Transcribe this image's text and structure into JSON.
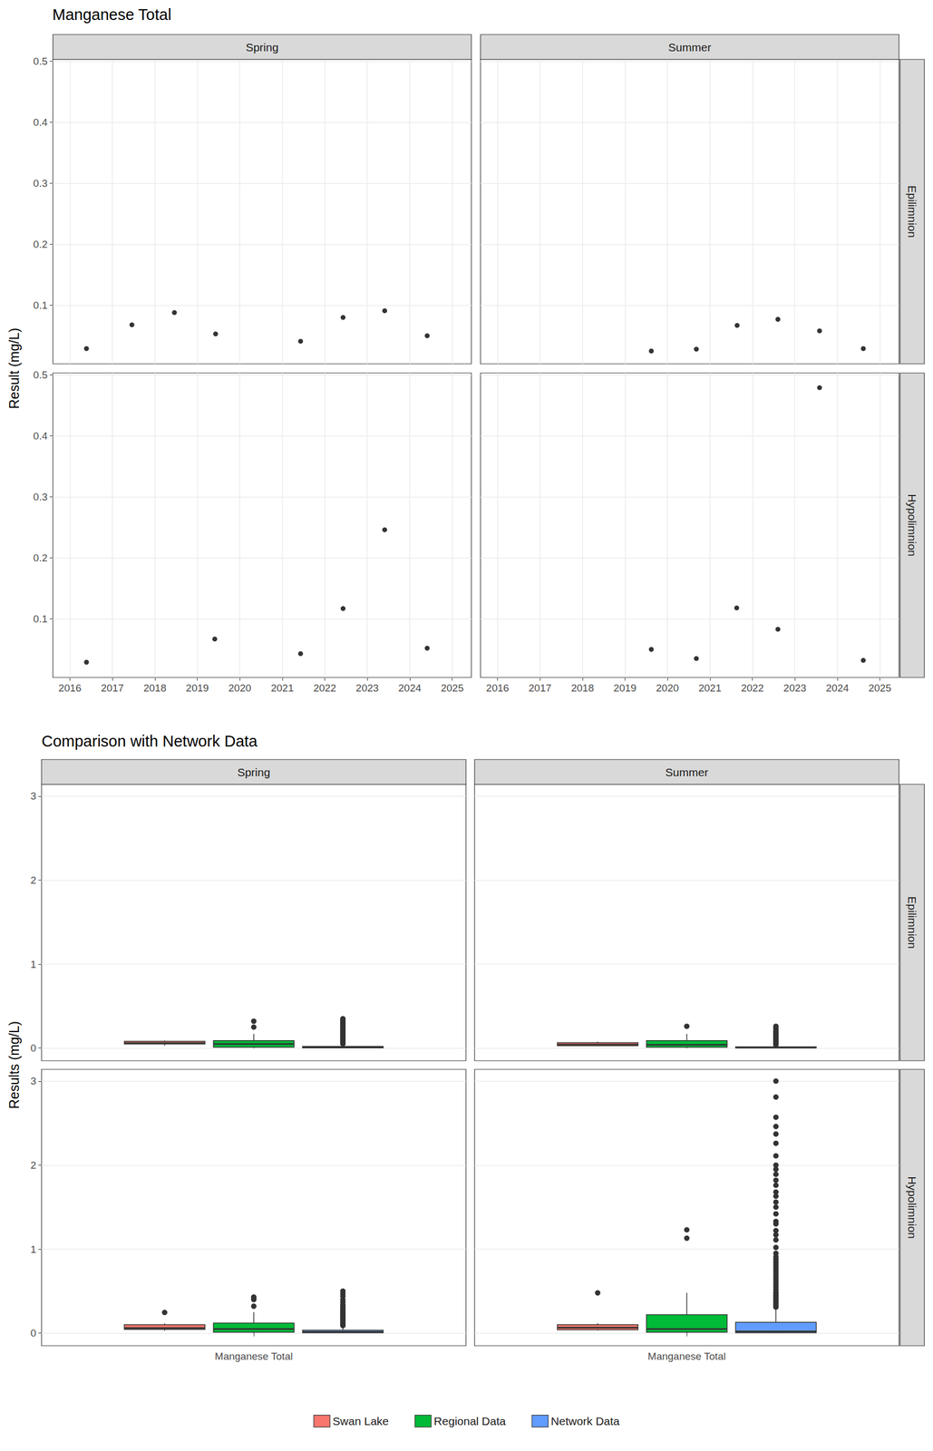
{
  "chart_data": [
    {
      "type": "scatter",
      "title": "Manganese Total",
      "y_label": "Result (mg/L)",
      "columns": [
        "Spring",
        "Summer"
      ],
      "rows": [
        "Epilimnion",
        "Hypolimnion"
      ],
      "xlim": [
        2015.6,
        2025.45
      ],
      "xticks": [
        2016,
        2017,
        2018,
        2019,
        2020,
        2021,
        2022,
        2023,
        2024,
        2025
      ],
      "ylim": [
        0.004,
        0.503
      ],
      "yticks": [
        0.1,
        0.2,
        0.3,
        0.4,
        0.5
      ],
      "grid": true,
      "marker": "circle",
      "color": "#000000",
      "panels": [
        {
          "column": "Spring",
          "row": "Epilimnion",
          "x": [
            2016.39,
            2017.46,
            2018.46,
            2019.43,
            2021.43,
            2022.43,
            2023.41,
            2024.41
          ],
          "values": [
            0.029,
            0.068,
            0.088,
            0.053,
            0.041,
            0.08,
            0.091,
            0.05
          ]
        },
        {
          "column": "Summer",
          "row": "Epilimnion",
          "x": [
            2019.62,
            2020.68,
            2021.64,
            2022.6,
            2023.58,
            2024.61
          ],
          "values": [
            0.025,
            0.028,
            0.067,
            0.077,
            0.058,
            0.029
          ]
        },
        {
          "column": "Spring",
          "row": "Hypolimnion",
          "x": [
            2016.39,
            2019.41,
            2021.43,
            2022.43,
            2023.41,
            2024.41
          ],
          "values": [
            0.029,
            0.067,
            0.043,
            0.117,
            0.246,
            0.052
          ]
        },
        {
          "column": "Summer",
          "row": "Hypolimnion",
          "x": [
            2019.62,
            2020.68,
            2021.63,
            2022.6,
            2023.58,
            2024.61
          ],
          "values": [
            0.05,
            0.035,
            0.118,
            0.083,
            0.479,
            0.032
          ]
        }
      ]
    },
    {
      "type": "boxplot",
      "title": "Comparison with Network Data",
      "y_label": "Results (mg/L)",
      "columns": [
        "Spring",
        "Summer"
      ],
      "rows": [
        "Epilimnion",
        "Hypolimnion"
      ],
      "categories": [
        "Manganese Total"
      ],
      "ylim": [
        -0.15,
        3.14
      ],
      "yticks": [
        0,
        1,
        2,
        3
      ],
      "grid": true,
      "legend": "bottom",
      "series": [
        {
          "name": "Swan Lake",
          "color": "#F8766D"
        },
        {
          "name": "Regional Data",
          "color": "#00BA38"
        },
        {
          "name": "Network Data",
          "color": "#619CFF"
        }
      ],
      "panels": [
        {
          "column": "Spring",
          "row": "Epilimnion",
          "boxes": [
            {
              "values": [
                0.029,
                0.05,
                0.06,
                0.082,
                0.091
              ],
              "outliers": []
            },
            {
              "values": [
                0.0,
                0.01,
                0.05,
                0.09,
                0.17
              ],
              "outliers": [
                0.25,
                0.32
              ]
            },
            {
              "values": [
                0.0,
                0.003,
                0.008,
                0.02,
                0.045
              ],
              "outliers": [
                0.05,
                0.06,
                0.07,
                0.08,
                0.09,
                0.1,
                0.11,
                0.12,
                0.13,
                0.14,
                0.15,
                0.16,
                0.17,
                0.18,
                0.19,
                0.2,
                0.21,
                0.22,
                0.23,
                0.24,
                0.25,
                0.26,
                0.27,
                0.28,
                0.29,
                0.3,
                0.31,
                0.32,
                0.33,
                0.34,
                0.35
              ]
            }
          ]
        },
        {
          "column": "Summer",
          "row": "Epilimnion",
          "boxes": [
            {
              "values": [
                0.025,
                0.029,
                0.043,
                0.065,
                0.077
              ],
              "outliers": []
            },
            {
              "values": [
                0.0,
                0.01,
                0.04,
                0.09,
                0.17
              ],
              "outliers": [
                0.26
              ]
            },
            {
              "values": [
                0.0,
                0.002,
                0.006,
                0.015,
                0.03
              ],
              "outliers": [
                0.04,
                0.05,
                0.06,
                0.07,
                0.08,
                0.09,
                0.1,
                0.11,
                0.12,
                0.13,
                0.14,
                0.15,
                0.16,
                0.17,
                0.18,
                0.19,
                0.2,
                0.22,
                0.24,
                0.26
              ]
            }
          ]
        },
        {
          "column": "Spring",
          "row": "Hypolimnion",
          "boxes": [
            {
              "values": [
                0.029,
                0.045,
                0.06,
                0.1,
                0.117
              ],
              "outliers": [
                0.246
              ]
            },
            {
              "values": [
                0.0,
                0.01,
                0.05,
                0.12,
                0.25
              ],
              "outliers": [
                0.32,
                0.4,
                0.42,
                0.43
              ]
            },
            {
              "values": [
                0.0,
                0.005,
                0.015,
                0.035,
                0.08
              ],
              "outliers": [
                0.09,
                0.1,
                0.11,
                0.12,
                0.13,
                0.14,
                0.15,
                0.16,
                0.17,
                0.18,
                0.19,
                0.2,
                0.21,
                0.22,
                0.23,
                0.24,
                0.25,
                0.26,
                0.27,
                0.28,
                0.29,
                0.3,
                0.32,
                0.34,
                0.37,
                0.4,
                0.44,
                0.47,
                0.5
              ]
            }
          ]
        },
        {
          "column": "Summer",
          "row": "Hypolimnion",
          "boxes": [
            {
              "values": [
                0.032,
                0.04,
                0.066,
                0.1,
                0.118
              ],
              "outliers": [
                0.479
              ]
            },
            {
              "values": [
                0.0,
                0.01,
                0.05,
                0.22,
                0.48
              ],
              "outliers": [
                1.13,
                1.23
              ]
            },
            {
              "values": [
                0.0,
                0.005,
                0.02,
                0.13,
                0.3
              ],
              "outliers": [
                0.31,
                0.33,
                0.35,
                0.37,
                0.39,
                0.41,
                0.43,
                0.45,
                0.47,
                0.49,
                0.52,
                0.55,
                0.58,
                0.61,
                0.64,
                0.67,
                0.7,
                0.73,
                0.76,
                0.79,
                0.82,
                0.85,
                0.88,
                0.91,
                0.95,
                1.02,
                1.11,
                1.17,
                1.22,
                1.3,
                1.33,
                1.42,
                1.5,
                1.56,
                1.63,
                1.68,
                1.76,
                1.82,
                1.89,
                1.95,
                2.0,
                2.11,
                2.26,
                2.37,
                2.46,
                2.57,
                2.81,
                3.0
              ]
            }
          ]
        }
      ]
    }
  ]
}
